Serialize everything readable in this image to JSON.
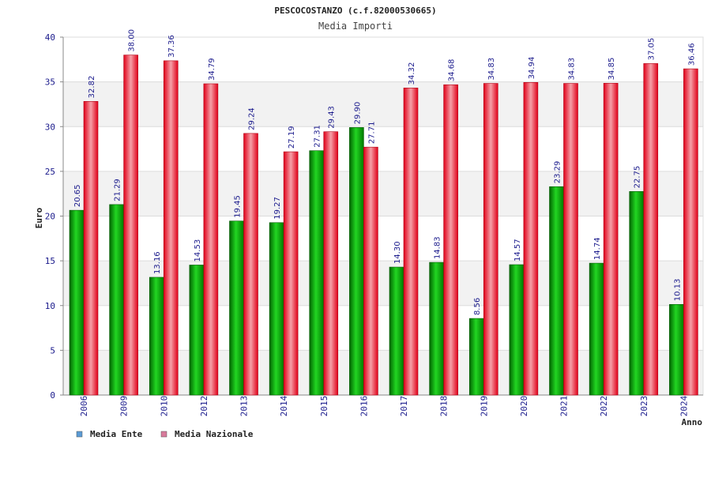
{
  "chart_data": {
    "type": "bar",
    "title": "PESCOCOSTANZO (c.f.82000530665)",
    "subtitle": "Media Importi",
    "ylabel": "Euro",
    "xlabel": "Anno",
    "ylim": [
      0,
      40
    ],
    "yticks": [
      0,
      5,
      10,
      15,
      20,
      25,
      30,
      35,
      40
    ],
    "grid": true,
    "legend_position": "bottom-left",
    "categories": [
      "2006",
      "2009",
      "2010",
      "2012",
      "2013",
      "2014",
      "2015",
      "2016",
      "2017",
      "2018",
      "2019",
      "2020",
      "2021",
      "2022",
      "2023",
      "2024"
    ],
    "series": [
      {
        "name": "Media Ente",
        "color": "#00b000",
        "legend_color": "#5b9bd5",
        "values": [
          20.65,
          21.29,
          13.16,
          14.53,
          19.45,
          19.27,
          27.31,
          29.9,
          14.3,
          14.83,
          8.56,
          14.57,
          23.29,
          14.74,
          22.75,
          10.13
        ],
        "labels": [
          "20.65",
          "21.29",
          "13.16",
          "14.53",
          "19.45",
          "19.27",
          "27.31",
          "29.90",
          "14.30",
          "14.83",
          "8.56",
          "14.57",
          "23.29",
          "14.74",
          "22.75",
          "10.13"
        ]
      },
      {
        "name": "Media Nazionale",
        "color": "#e8001c",
        "legend_color": "#d87a9b",
        "values": [
          32.82,
          38.0,
          37.36,
          34.79,
          29.24,
          27.19,
          29.43,
          27.71,
          34.32,
          34.68,
          34.83,
          34.94,
          34.83,
          34.85,
          37.05,
          36.46
        ],
        "labels": [
          "32.82",
          "38.00",
          "37.36",
          "34.79",
          "29.24",
          "27.19",
          "29.43",
          "27.71",
          "34.32",
          "34.68",
          "34.83",
          "34.94",
          "34.83",
          "34.85",
          "37.05",
          "36.46"
        ]
      }
    ]
  }
}
